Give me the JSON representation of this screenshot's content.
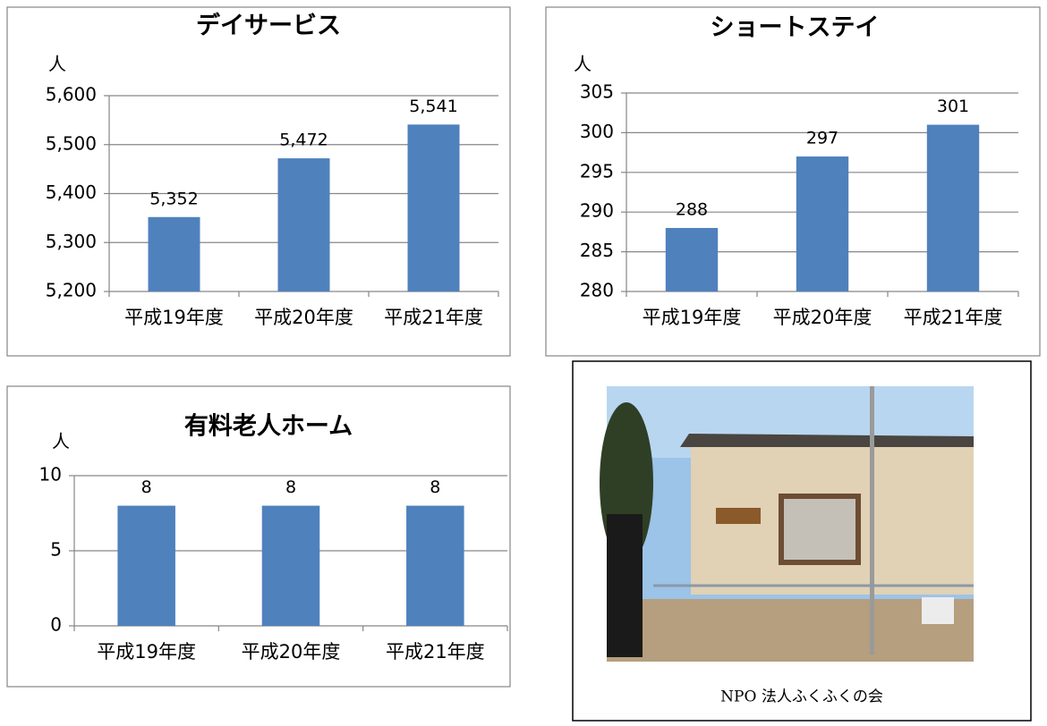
{
  "chart_data": [
    {
      "type": "bar",
      "title": "デイサービス",
      "ylabel": "人",
      "categories": [
        "平成19年度",
        "平成20年度",
        "平成21年度"
      ],
      "values": [
        5352,
        5472,
        5541
      ],
      "value_labels": [
        "5,352",
        "5,472",
        "5,541"
      ],
      "color": "#4f81bd",
      "ylim": [
        5200,
        5600
      ],
      "yticks": [
        {
          "value": 5200,
          "label": "5,200"
        },
        {
          "value": 5300,
          "label": "5,300"
        },
        {
          "value": 5400,
          "label": "5,400"
        },
        {
          "value": 5500,
          "label": "5,500"
        },
        {
          "value": 5600,
          "label": "5,600"
        }
      ],
      "grid": true
    },
    {
      "type": "bar",
      "title": "ショートステイ",
      "ylabel": "人",
      "categories": [
        "平成19年度",
        "平成20年度",
        "平成21年度"
      ],
      "values": [
        288,
        297,
        301
      ],
      "color": "#4f81bd",
      "ylim": [
        280,
        305
      ],
      "yticks": [
        280,
        285,
        290,
        295,
        300,
        305
      ],
      "grid": true
    },
    {
      "type": "bar",
      "title": "有料老人ホーム",
      "ylabel": "人",
      "categories": [
        "平成19年度",
        "平成20年度",
        "平成21年度"
      ],
      "values": [
        8,
        8,
        8
      ],
      "color": "#4f81bd",
      "ylim": [
        0,
        10
      ],
      "yticks": [
        0,
        5,
        10
      ],
      "grid": true
    }
  ],
  "photo": {
    "caption": "NPO 法人ふくふくの会"
  }
}
